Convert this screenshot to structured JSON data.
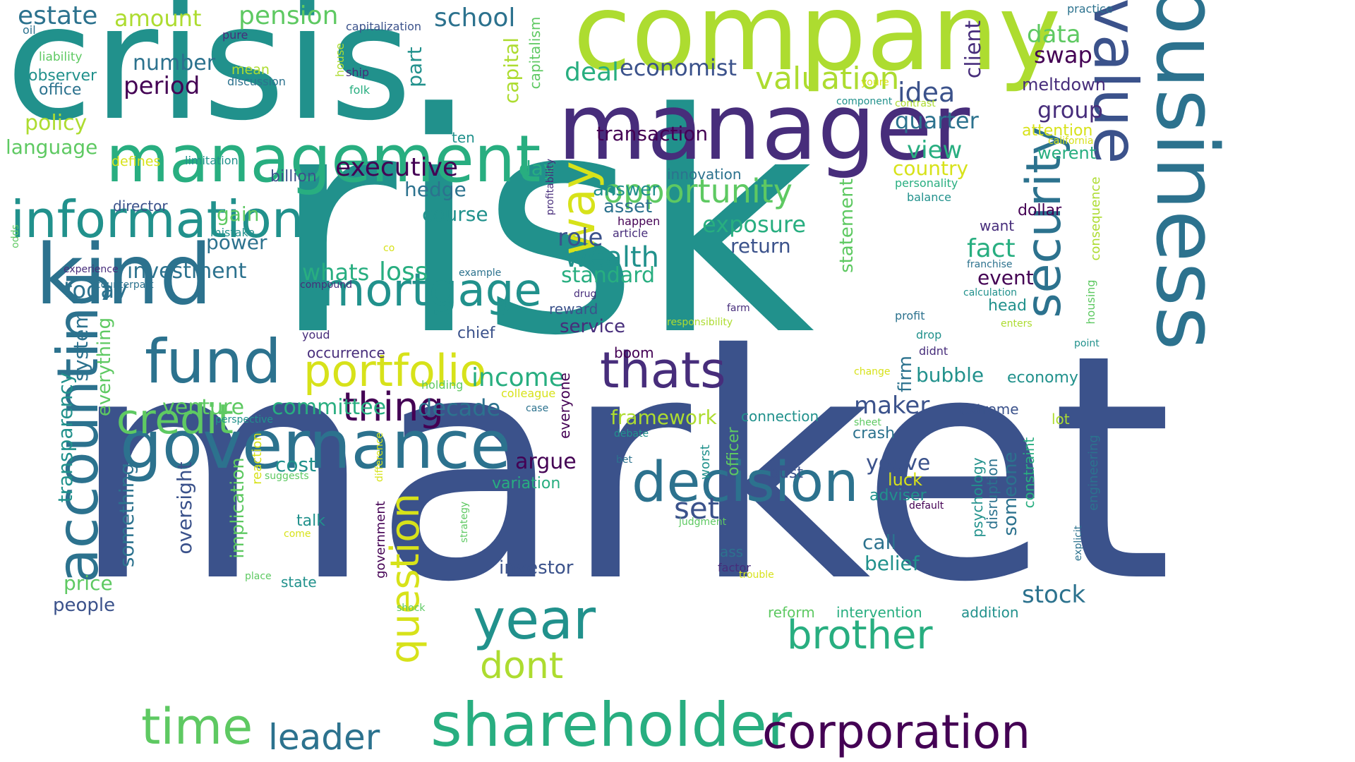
{
  "palette": {
    "dark_purple": "#440154",
    "indigo": "#472d7b",
    "blue": "#3b528b",
    "steel_blue": "#2c728e",
    "teal": "#21918c",
    "green_teal": "#28ae80",
    "green": "#5ec962",
    "lime": "#addc30",
    "yellow": "#fde725"
  },
  "words": [
    {
      "text": "risk"
    },
    {
      "text": "market"
    },
    {
      "text": "crisis"
    },
    {
      "text": "company"
    },
    {
      "text": "business"
    },
    {
      "text": "manager"
    },
    {
      "text": "management"
    },
    {
      "text": "kind"
    },
    {
      "text": "accounting"
    },
    {
      "text": "governance"
    },
    {
      "text": "information"
    },
    {
      "text": "fund"
    },
    {
      "text": "value"
    },
    {
      "text": "security"
    },
    {
      "text": "shareholder"
    },
    {
      "text": "corporation"
    },
    {
      "text": "decision"
    },
    {
      "text": "year"
    },
    {
      "text": "mortgage"
    },
    {
      "text": "portfolio"
    },
    {
      "text": "time"
    },
    {
      "text": "question"
    },
    {
      "text": "way"
    },
    {
      "text": "thats"
    },
    {
      "text": "brother"
    },
    {
      "text": "credit"
    },
    {
      "text": "opportunity"
    },
    {
      "text": "thing"
    },
    {
      "text": "dont"
    },
    {
      "text": "leader"
    },
    {
      "text": "valuation"
    },
    {
      "text": "estate"
    },
    {
      "text": "pension"
    },
    {
      "text": "school"
    },
    {
      "text": "deal"
    },
    {
      "text": "economist"
    },
    {
      "text": "data"
    },
    {
      "text": "swap"
    },
    {
      "text": "idea"
    },
    {
      "text": "group"
    },
    {
      "text": "quarter"
    },
    {
      "text": "meltdown"
    },
    {
      "text": "client"
    },
    {
      "text": "amount"
    },
    {
      "text": "number"
    },
    {
      "text": "period"
    },
    {
      "text": "observer"
    },
    {
      "text": "office"
    },
    {
      "text": "liability"
    },
    {
      "text": "oil"
    },
    {
      "text": "pure"
    },
    {
      "text": "mean"
    },
    {
      "text": "discussion"
    },
    {
      "text": "ship"
    },
    {
      "text": "folk"
    },
    {
      "text": "house"
    },
    {
      "text": "part"
    },
    {
      "text": "capitalization"
    },
    {
      "text": "capital"
    },
    {
      "text": "capitalism"
    },
    {
      "text": "practice"
    },
    {
      "text": "policy"
    },
    {
      "text": "language"
    },
    {
      "text": "defines"
    },
    {
      "text": "limitation"
    },
    {
      "text": "ten"
    },
    {
      "text": "executive"
    },
    {
      "text": "transaction"
    },
    {
      "text": "view"
    },
    {
      "text": "werent"
    },
    {
      "text": "attention"
    },
    {
      "text": "california"
    },
    {
      "text": "country"
    },
    {
      "text": "personality"
    },
    {
      "text": "balance"
    },
    {
      "text": "youre"
    },
    {
      "text": "component"
    },
    {
      "text": "contrast"
    },
    {
      "text": "day"
    },
    {
      "text": "billion"
    },
    {
      "text": "hedge"
    },
    {
      "text": "innovation"
    },
    {
      "text": "answer"
    },
    {
      "text": "asset"
    },
    {
      "text": "director"
    },
    {
      "text": "gain"
    },
    {
      "text": "course"
    },
    {
      "text": "exposure"
    },
    {
      "text": "return"
    },
    {
      "text": "role"
    },
    {
      "text": "wealth"
    },
    {
      "text": "standard"
    },
    {
      "text": "statement"
    },
    {
      "text": "fact"
    },
    {
      "text": "event"
    },
    {
      "text": "dollar"
    },
    {
      "text": "want"
    },
    {
      "text": "consequence"
    },
    {
      "text": "mistake"
    },
    {
      "text": "power"
    },
    {
      "text": "happen"
    },
    {
      "text": "article"
    },
    {
      "text": "profitability"
    },
    {
      "text": "odds"
    },
    {
      "text": "co"
    },
    {
      "text": "experience"
    },
    {
      "text": "investment"
    },
    {
      "text": "whats"
    },
    {
      "text": "loss"
    },
    {
      "text": "example"
    },
    {
      "text": "counterpart"
    },
    {
      "text": "compound"
    },
    {
      "text": "today"
    },
    {
      "text": "drug"
    },
    {
      "text": "reward"
    },
    {
      "text": "service"
    },
    {
      "text": "farm"
    },
    {
      "text": "responsibility"
    },
    {
      "text": "franchise"
    },
    {
      "text": "calculation"
    },
    {
      "text": "head"
    },
    {
      "text": "housing"
    },
    {
      "text": "profit"
    },
    {
      "text": "enters"
    },
    {
      "text": "point"
    },
    {
      "text": "drop"
    },
    {
      "text": "didnt"
    },
    {
      "text": "chief"
    },
    {
      "text": "youd"
    },
    {
      "text": "occurrence"
    },
    {
      "text": "boom"
    },
    {
      "text": "system"
    },
    {
      "text": "everything"
    },
    {
      "text": "transparency"
    },
    {
      "text": "income"
    },
    {
      "text": "bubble"
    },
    {
      "text": "economy"
    },
    {
      "text": "firm"
    },
    {
      "text": "change"
    },
    {
      "text": "holding"
    },
    {
      "text": "colleague"
    },
    {
      "text": "venture"
    },
    {
      "text": "committee"
    },
    {
      "text": "decade"
    },
    {
      "text": "case"
    },
    {
      "text": "everyone"
    },
    {
      "text": "maker"
    },
    {
      "text": "extreme"
    },
    {
      "text": "framework"
    },
    {
      "text": "connection"
    },
    {
      "text": "lot"
    },
    {
      "text": "sheet"
    },
    {
      "text": "crash"
    },
    {
      "text": "perspective"
    },
    {
      "text": "debate"
    },
    {
      "text": "officer"
    },
    {
      "text": "argue"
    },
    {
      "text": "cost"
    },
    {
      "text": "youve"
    },
    {
      "text": "luck"
    },
    {
      "text": "bet"
    },
    {
      "text": "bust"
    },
    {
      "text": "worst"
    },
    {
      "text": "something"
    },
    {
      "text": "oversight"
    },
    {
      "text": "implication"
    },
    {
      "text": "reaction"
    },
    {
      "text": "suggests"
    },
    {
      "text": "difference"
    },
    {
      "text": "variation"
    },
    {
      "text": "adviser"
    },
    {
      "text": "default"
    },
    {
      "text": "strategy"
    },
    {
      "text": "set"
    },
    {
      "text": "talk"
    },
    {
      "text": "come"
    },
    {
      "text": "judgment"
    },
    {
      "text": "psychology"
    },
    {
      "text": "disruption"
    },
    {
      "text": "someone"
    },
    {
      "text": "constraint"
    },
    {
      "text": "engineering"
    },
    {
      "text": "explicit"
    },
    {
      "text": "call"
    },
    {
      "text": "ass"
    },
    {
      "text": "investor"
    },
    {
      "text": "belief"
    },
    {
      "text": "factor"
    },
    {
      "text": "trouble"
    },
    {
      "text": "government"
    },
    {
      "text": "price"
    },
    {
      "text": "place"
    },
    {
      "text": "state"
    },
    {
      "text": "people"
    },
    {
      "text": "shock"
    },
    {
      "text": "reform"
    },
    {
      "text": "intervention"
    },
    {
      "text": "addition"
    },
    {
      "text": "stock"
    }
  ]
}
